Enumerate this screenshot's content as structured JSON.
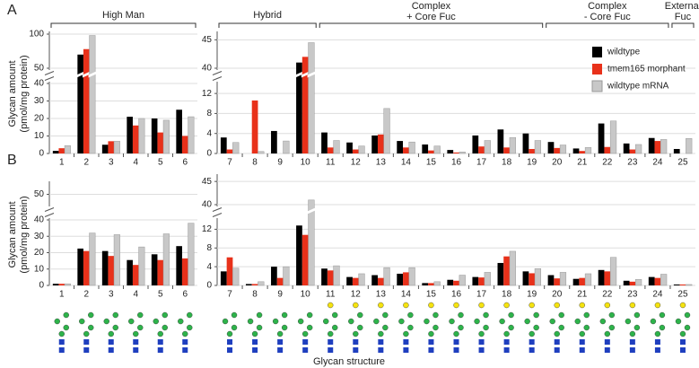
{
  "xlabel": "Glycan structure",
  "chart_data": [
    {
      "type": "bar",
      "panel": "A",
      "ylabel": [
        "Glycan amount",
        "(pmol/mg protein)"
      ],
      "groups": [
        "High Man"
      ],
      "categories": [
        "1",
        "2",
        "3",
        "4",
        "5",
        "6"
      ],
      "series": [
        {
          "color": "#000000",
          "values": [
            1.5,
            70,
            5,
            21,
            20,
            25
          ]
        },
        {
          "color": "#e8311a",
          "values": [
            3,
            78,
            7,
            16,
            12,
            10
          ]
        },
        {
          "color": "#c8c8c8",
          "values": [
            4.5,
            98,
            7,
            20,
            19,
            21
          ]
        }
      ],
      "ylim_lower": [
        0,
        40
      ],
      "ylim_upper": [
        50,
        100
      ],
      "yticks": [
        0,
        10,
        20,
        30,
        40,
        50,
        100
      ],
      "grid": true
    },
    {
      "type": "bar",
      "groups": [
        "Hybrid",
        "Complex\n+ Core Fuc",
        "Complex\n- Core Fuc",
        "External\nFuc"
      ],
      "categories": [
        "7",
        "8",
        "9",
        "10",
        "11",
        "12",
        "13",
        "14",
        "15",
        "16",
        "17",
        "18",
        "19",
        "20",
        "21",
        "22",
        "23",
        "24",
        "25"
      ],
      "series": [
        {
          "name": "wildtype",
          "color": "#000000",
          "values": [
            3.2,
            0,
            4.5,
            41,
            4.2,
            2.2,
            3.6,
            2.5,
            1.8,
            0.7,
            3.6,
            4.8,
            4,
            2.3,
            1,
            6,
            2,
            3.1,
            0.9
          ]
        },
        {
          "name": "tmem165 morphant",
          "color": "#e8311a",
          "values": [
            0.8,
            10.6,
            0,
            42,
            1.2,
            0.8,
            3.8,
            1.2,
            0.6,
            0.2,
            1.4,
            1.2,
            0.9,
            1.1,
            0.5,
            1.3,
            0.8,
            2.5,
            0
          ]
        },
        {
          "name": "wildtype mRNA",
          "color": "#c8c8c8",
          "values": [
            2.2,
            0.4,
            2.5,
            44.5,
            2.6,
            1.5,
            9,
            2.3,
            1.5,
            0.3,
            2.6,
            3.2,
            2.6,
            1.7,
            1.2,
            6.5,
            1.8,
            2.8,
            3
          ]
        }
      ],
      "ylim_lower": [
        0,
        14
      ],
      "ylim_upper": [
        40,
        46
      ],
      "yticks": [
        0,
        4,
        8,
        12,
        40,
        45
      ],
      "grid": true,
      "legend": "upper right"
    },
    {
      "type": "bar",
      "panel": "B",
      "ylabel": [
        "Glycan amount",
        "(pmol/mg protein)"
      ],
      "categories": [
        "1",
        "2",
        "3",
        "4",
        "5",
        "6"
      ],
      "series": [
        {
          "color": "#000000",
          "values": [
            1,
            22.5,
            21,
            15.5,
            19,
            24
          ]
        },
        {
          "color": "#e8311a",
          "values": [
            1,
            21,
            18,
            12.5,
            15.5,
            16.5
          ]
        },
        {
          "color": "#c8c8c8",
          "values": [
            1,
            32,
            31,
            23.5,
            31.5,
            38
          ]
        }
      ],
      "ylim_lower": [
        0,
        40
      ],
      "ylim_upper": [
        48,
        52
      ],
      "yticks": [
        0,
        10,
        20,
        30,
        40,
        50
      ],
      "grid": true
    },
    {
      "type": "bar",
      "categories": [
        "7",
        "8",
        "9",
        "10",
        "11",
        "12",
        "13",
        "14",
        "15",
        "16",
        "17",
        "18",
        "19",
        "20",
        "21",
        "22",
        "23",
        "24",
        "25"
      ],
      "series": [
        {
          "color": "#000000",
          "values": [
            3,
            0.3,
            4,
            12.8,
            3.6,
            1.8,
            2.2,
            2.5,
            0.5,
            1.2,
            1.8,
            4.8,
            3,
            2.2,
            1.4,
            3.3,
            1,
            1.8,
            0.2
          ]
        },
        {
          "color": "#e8311a",
          "values": [
            6,
            0.3,
            1.6,
            10.8,
            3.2,
            1.6,
            1.6,
            2.8,
            0.5,
            1,
            1.7,
            6.2,
            2.6,
            1.5,
            1.6,
            3,
            0.8,
            1.6,
            0.2
          ]
        },
        {
          "color": "#c8c8c8",
          "values": [
            3.7,
            0.8,
            4,
            41,
            4.2,
            2.5,
            3.8,
            3.8,
            0.8,
            2.2,
            2.8,
            7.3,
            3.6,
            2.8,
            2.5,
            6,
            1.3,
            2.4,
            0.2
          ]
        }
      ],
      "ylim_lower": [
        0,
        14
      ],
      "ylim_upper": [
        40,
        46
      ],
      "yticks": [
        0,
        4,
        8,
        12,
        40,
        45
      ],
      "grid": true
    }
  ]
}
